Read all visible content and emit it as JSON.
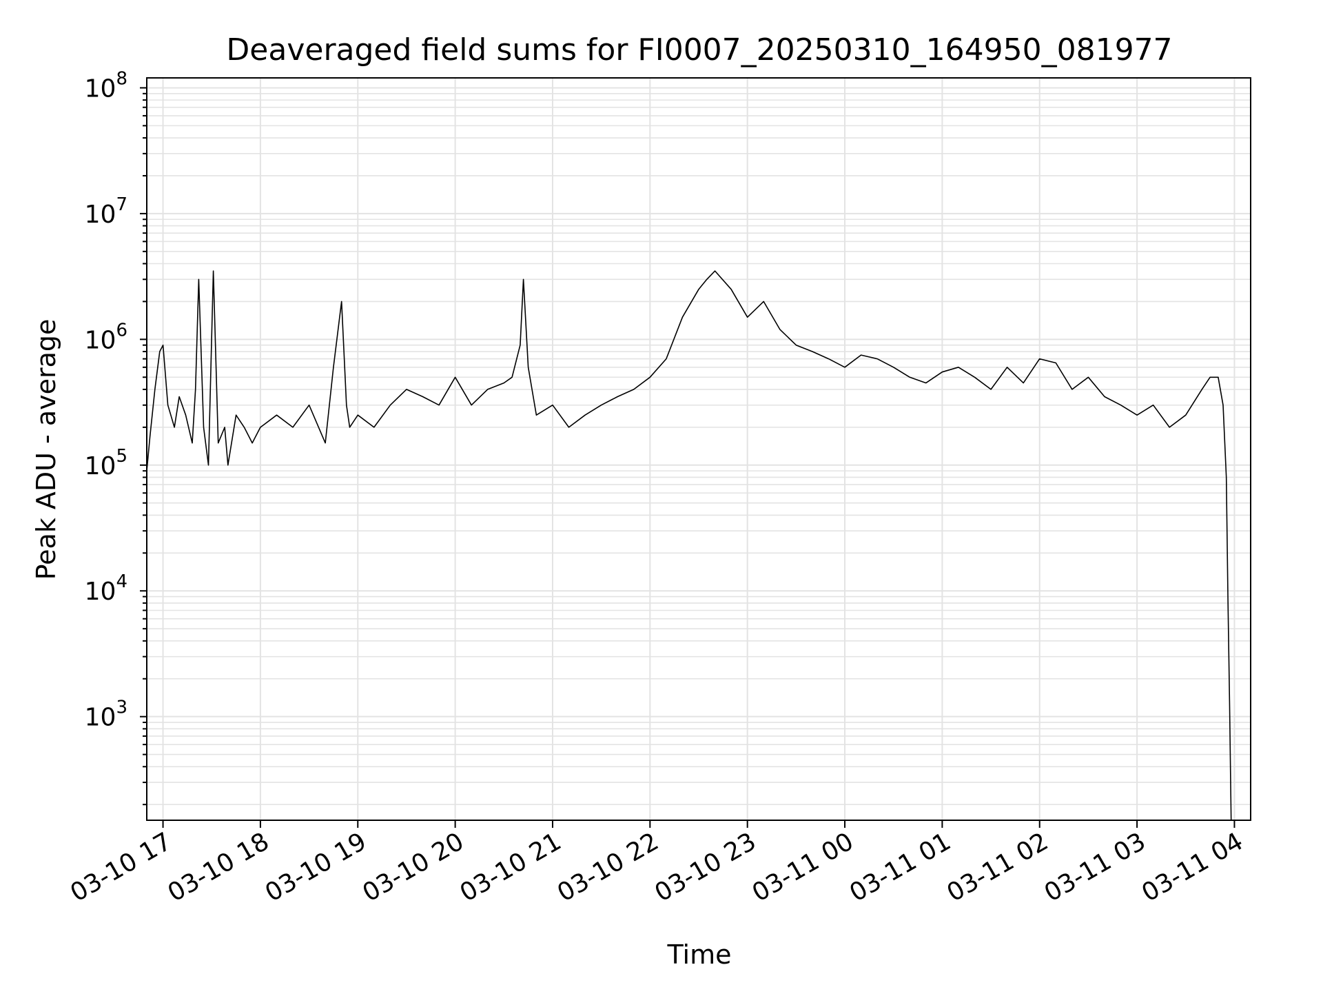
{
  "chart_data": {
    "type": "line",
    "title": "Deaveraged field sums for FI0007_20250310_164950_081977",
    "xlabel": "Time",
    "ylabel": "Peak ADU - average",
    "yscale": "log",
    "ylim": [
      150,
      120000000
    ],
    "xlim": [
      "03-10 16:50",
      "03-11 04:10"
    ],
    "grid": true,
    "line_color": "#000000",
    "grid_color": "#e3e3e3",
    "x_ticks": [
      "03-10 17",
      "03-10 18",
      "03-10 19",
      "03-10 20",
      "03-10 21",
      "03-10 22",
      "03-10 23",
      "03-11 00",
      "03-11 01",
      "03-11 02",
      "03-11 03",
      "03-11 04"
    ],
    "y_ticks": [
      {
        "value": 1000,
        "base": "10",
        "exp": "3"
      },
      {
        "value": 10000,
        "base": "10",
        "exp": "4"
      },
      {
        "value": 100000,
        "base": "10",
        "exp": "5"
      },
      {
        "value": 1000000,
        "base": "10",
        "exp": "6"
      },
      {
        "value": 10000000,
        "base": "10",
        "exp": "7"
      },
      {
        "value": 100000000,
        "base": "10",
        "exp": "8"
      }
    ],
    "series": [
      {
        "x": [
          "03-10 16:50",
          "03-10 16:52",
          "03-10 16:55",
          "03-10 16:58",
          "03-10 17:00",
          "03-10 17:03",
          "03-10 17:07",
          "03-10 17:10",
          "03-10 17:14",
          "03-10 17:18",
          "03-10 17:20",
          "03-10 17:22",
          "03-10 17:25",
          "03-10 17:28",
          "03-10 17:31",
          "03-10 17:34",
          "03-10 17:38",
          "03-10 17:40",
          "03-10 17:45",
          "03-10 17:50",
          "03-10 17:55",
          "03-10 18:00",
          "03-10 18:10",
          "03-10 18:20",
          "03-10 18:30",
          "03-10 18:40",
          "03-10 18:45",
          "03-10 18:50",
          "03-10 18:53",
          "03-10 18:55",
          "03-10 19:00",
          "03-10 19:10",
          "03-10 19:20",
          "03-10 19:30",
          "03-10 19:40",
          "03-10 19:50",
          "03-10 20:00",
          "03-10 20:10",
          "03-10 20:20",
          "03-10 20:30",
          "03-10 20:35",
          "03-10 20:40",
          "03-10 20:42",
          "03-10 20:45",
          "03-10 20:50",
          "03-10 21:00",
          "03-10 21:10",
          "03-10 21:20",
          "03-10 21:30",
          "03-10 21:40",
          "03-10 21:50",
          "03-10 22:00",
          "03-10 22:10",
          "03-10 22:20",
          "03-10 22:30",
          "03-10 22:35",
          "03-10 22:40",
          "03-10 22:50",
          "03-10 23:00",
          "03-10 23:10",
          "03-10 23:20",
          "03-10 23:30",
          "03-10 23:40",
          "03-10 23:50",
          "03-11 00:00",
          "03-11 00:10",
          "03-11 00:20",
          "03-11 00:30",
          "03-11 00:40",
          "03-11 00:50",
          "03-11 01:00",
          "03-11 01:10",
          "03-11 01:20",
          "03-11 01:30",
          "03-11 01:40",
          "03-11 01:50",
          "03-11 02:00",
          "03-11 02:10",
          "03-11 02:20",
          "03-11 02:30",
          "03-11 02:40",
          "03-11 02:50",
          "03-11 03:00",
          "03-11 03:10",
          "03-11 03:20",
          "03-11 03:30",
          "03-11 03:40",
          "03-11 03:45",
          "03-11 03:50",
          "03-11 03:53",
          "03-11 03:55",
          "03-11 03:56",
          "03-11 03:57",
          "03-11 03:58"
        ],
        "y": [
          90000,
          170000,
          400000,
          800000,
          900000,
          300000,
          200000,
          350000,
          250000,
          150000,
          400000,
          3000000,
          200000,
          100000,
          3500000,
          150000,
          200000,
          100000,
          250000,
          200000,
          150000,
          200000,
          250000,
          200000,
          300000,
          150000,
          600000,
          2000000,
          300000,
          200000,
          250000,
          200000,
          300000,
          400000,
          350000,
          300000,
          500000,
          300000,
          400000,
          450000,
          500000,
          900000,
          3000000,
          600000,
          250000,
          300000,
          200000,
          250000,
          300000,
          350000,
          400000,
          500000,
          700000,
          1500000,
          2500000,
          3000000,
          3500000,
          2500000,
          1500000,
          2000000,
          1200000,
          900000,
          800000,
          700000,
          600000,
          750000,
          700000,
          600000,
          500000,
          450000,
          550000,
          600000,
          500000,
          400000,
          600000,
          450000,
          700000,
          650000,
          400000,
          500000,
          350000,
          300000,
          250000,
          300000,
          200000,
          250000,
          400000,
          500000,
          500000,
          300000,
          80000,
          9000,
          1300,
          150
        ]
      }
    ]
  }
}
